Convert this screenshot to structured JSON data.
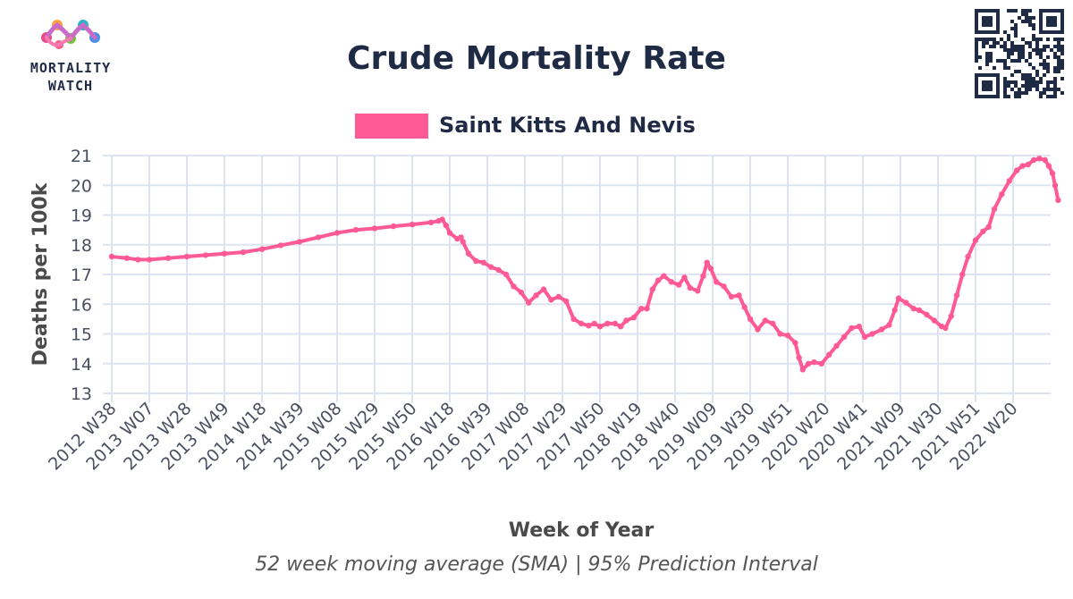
{
  "logo": {
    "line1": "MORTALITY",
    "line2": "WATCH"
  },
  "chart_data": {
    "type": "line",
    "title": "Crude Mortality Rate",
    "subtitle": "52 week moving average (SMA) | 95% Prediction Interval",
    "xlabel": "Week of Year",
    "ylabel": "Deaths per 100k",
    "ylim": [
      13,
      21
    ],
    "yticks": [
      13,
      14,
      15,
      16,
      17,
      18,
      19,
      20,
      21
    ],
    "xticks": [
      "2012 W38",
      "2013 W07",
      "2013 W28",
      "2013 W49",
      "2014 W18",
      "2014 W39",
      "2015 W08",
      "2015 W29",
      "2015 W50",
      "2016 W18",
      "2016 W39",
      "2017 W08",
      "2017 W29",
      "2017 W50",
      "2018 W19",
      "2018 W40",
      "2019 W09",
      "2019 W30",
      "2019 W51",
      "2020 W20",
      "2020 W41",
      "2021 W09",
      "2021 W30",
      "2021 W51",
      "2022 W20"
    ],
    "grid": true,
    "legend_position": "top-center",
    "series": [
      {
        "name": "Saint Kitts And Nevis",
        "color": "#ff5a96",
        "points": [
          [
            0,
            17.6
          ],
          [
            0.4,
            17.55
          ],
          [
            0.7,
            17.5
          ],
          [
            1.0,
            17.5
          ],
          [
            1.5,
            17.55
          ],
          [
            2.0,
            17.6
          ],
          [
            2.5,
            17.65
          ],
          [
            3.0,
            17.7
          ],
          [
            3.5,
            17.75
          ],
          [
            4.0,
            17.85
          ],
          [
            4.5,
            17.98
          ],
          [
            5.0,
            18.1
          ],
          [
            5.5,
            18.25
          ],
          [
            6.0,
            18.4
          ],
          [
            6.5,
            18.5
          ],
          [
            7.0,
            18.55
          ],
          [
            7.5,
            18.62
          ],
          [
            8.0,
            18.68
          ],
          [
            8.5,
            18.75
          ],
          [
            8.7,
            18.8
          ],
          [
            8.8,
            18.85
          ],
          [
            8.9,
            18.65
          ],
          [
            9.0,
            18.4
          ],
          [
            9.2,
            18.2
          ],
          [
            9.3,
            18.25
          ],
          [
            9.35,
            18.1
          ],
          [
            9.5,
            17.7
          ],
          [
            9.7,
            17.45
          ],
          [
            9.9,
            17.4
          ],
          [
            10.1,
            17.25
          ],
          [
            10.3,
            17.15
          ],
          [
            10.5,
            17.0
          ],
          [
            10.7,
            16.6
          ],
          [
            10.9,
            16.4
          ],
          [
            11.1,
            16.05
          ],
          [
            11.3,
            16.3
          ],
          [
            11.5,
            16.5
          ],
          [
            11.7,
            16.15
          ],
          [
            11.9,
            16.25
          ],
          [
            12.1,
            16.1
          ],
          [
            12.3,
            15.5
          ],
          [
            12.5,
            15.35
          ],
          [
            12.7,
            15.28
          ],
          [
            12.85,
            15.35
          ],
          [
            13.0,
            15.25
          ],
          [
            13.2,
            15.35
          ],
          [
            13.4,
            15.35
          ],
          [
            13.55,
            15.25
          ],
          [
            13.7,
            15.45
          ],
          [
            13.9,
            15.55
          ],
          [
            14.1,
            15.85
          ],
          [
            14.25,
            15.85
          ],
          [
            14.4,
            16.5
          ],
          [
            14.55,
            16.8
          ],
          [
            14.7,
            16.95
          ],
          [
            14.9,
            16.75
          ],
          [
            15.1,
            16.65
          ],
          [
            15.25,
            16.9
          ],
          [
            15.4,
            16.55
          ],
          [
            15.6,
            16.45
          ],
          [
            15.75,
            16.95
          ],
          [
            15.85,
            17.4
          ],
          [
            15.95,
            17.2
          ],
          [
            16.1,
            16.75
          ],
          [
            16.3,
            16.6
          ],
          [
            16.5,
            16.25
          ],
          [
            16.7,
            16.3
          ],
          [
            16.85,
            15.9
          ],
          [
            17.0,
            15.5
          ],
          [
            17.2,
            15.15
          ],
          [
            17.4,
            15.45
          ],
          [
            17.6,
            15.35
          ],
          [
            17.8,
            15.0
          ],
          [
            18.0,
            14.95
          ],
          [
            18.2,
            14.7
          ],
          [
            18.3,
            14.2
          ],
          [
            18.4,
            13.8
          ],
          [
            18.55,
            14.0
          ],
          [
            18.7,
            14.05
          ],
          [
            18.9,
            14.0
          ],
          [
            19.1,
            14.3
          ],
          [
            19.3,
            14.6
          ],
          [
            19.5,
            14.9
          ],
          [
            19.7,
            15.2
          ],
          [
            19.9,
            15.25
          ],
          [
            20.05,
            14.9
          ],
          [
            20.25,
            15.0
          ],
          [
            20.5,
            15.15
          ],
          [
            20.7,
            15.3
          ],
          [
            20.85,
            15.8
          ],
          [
            20.95,
            16.2
          ],
          [
            21.15,
            16.05
          ],
          [
            21.35,
            15.85
          ],
          [
            21.5,
            15.8
          ],
          [
            21.7,
            15.65
          ],
          [
            21.9,
            15.45
          ],
          [
            22.1,
            15.25
          ],
          [
            22.2,
            15.2
          ],
          [
            22.35,
            15.6
          ],
          [
            22.5,
            16.3
          ],
          [
            22.65,
            17.0
          ],
          [
            22.8,
            17.6
          ],
          [
            23.0,
            18.15
          ],
          [
            23.2,
            18.45
          ],
          [
            23.35,
            18.6
          ],
          [
            23.5,
            19.2
          ],
          [
            23.7,
            19.7
          ],
          [
            23.9,
            20.15
          ],
          [
            24.1,
            20.5
          ],
          [
            24.25,
            20.65
          ],
          [
            24.4,
            20.7
          ],
          [
            24.55,
            20.85
          ],
          [
            24.7,
            20.9
          ],
          [
            24.85,
            20.85
          ],
          [
            24.95,
            20.65
          ],
          [
            25.05,
            20.4
          ],
          [
            25.12,
            20.0
          ],
          [
            25.2,
            19.5
          ]
        ]
      }
    ]
  }
}
